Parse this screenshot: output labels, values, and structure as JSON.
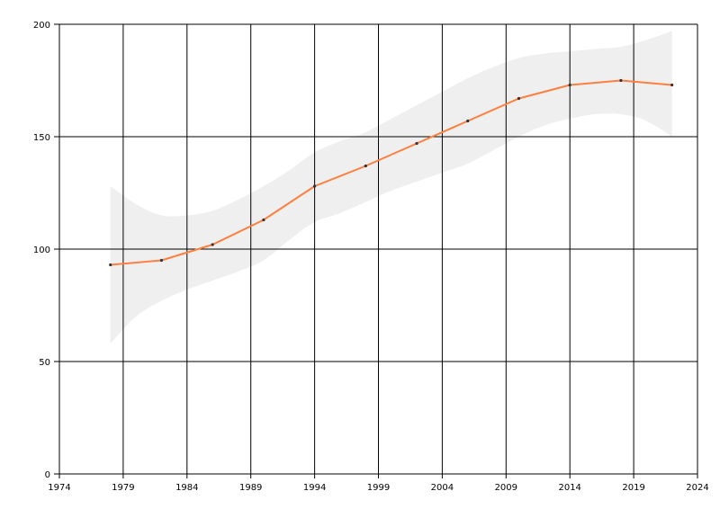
{
  "chart_data": {
    "type": "line",
    "title": "",
    "xlabel": "",
    "ylabel": "",
    "xlim": [
      1974,
      2024
    ],
    "ylim": [
      0,
      200
    ],
    "x_ticks": [
      "1974",
      "1979",
      "1984",
      "1989",
      "1994",
      "1999",
      "2004",
      "2009",
      "2014",
      "2019",
      "2024"
    ],
    "y_ticks": [
      "0",
      "50",
      "100",
      "150",
      "200"
    ],
    "grid": true,
    "legend": "none",
    "series": [
      {
        "x": [
          1978,
          1982,
          1986,
          1990,
          1994,
          1998,
          2002,
          2006,
          2010,
          2014,
          2018,
          2022
        ],
        "values": [
          93,
          95,
          102,
          113,
          128,
          137,
          147,
          157,
          167,
          173,
          175,
          173
        ],
        "color": "#ff7f3f"
      }
    ],
    "band": {
      "x": [
        1978,
        1980,
        1982,
        1984,
        1986,
        1988,
        1990,
        1992,
        1994,
        1996,
        1998,
        2000,
        2002,
        2004,
        2006,
        2008,
        2010,
        2012,
        2014,
        2016,
        2018,
        2020,
        2022
      ],
      "upper": [
        128,
        120,
        115,
        115,
        117,
        122,
        128,
        135,
        143,
        148,
        152,
        158,
        164,
        170,
        176,
        181,
        185,
        187,
        188,
        189,
        190,
        193,
        197
      ],
      "lower": [
        58,
        70,
        77,
        82,
        86,
        90,
        95,
        104,
        112,
        116,
        121,
        126,
        130,
        134,
        138,
        144,
        150,
        155,
        158,
        160,
        160,
        157,
        150
      ],
      "color": "#efefef"
    }
  }
}
